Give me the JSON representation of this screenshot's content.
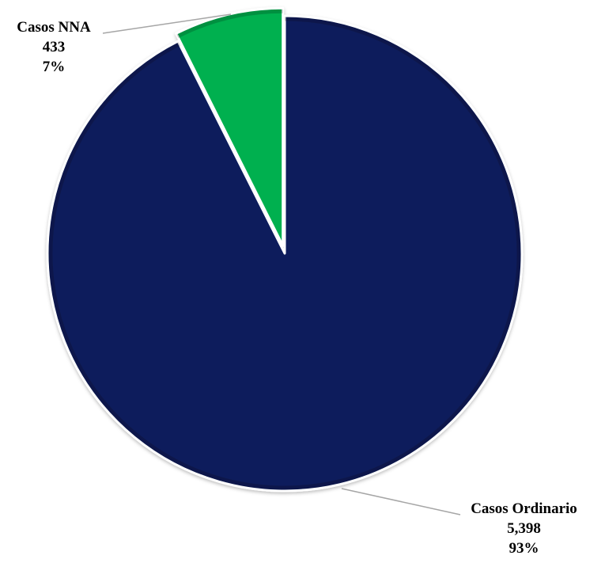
{
  "chart_data": {
    "type": "pie",
    "slices": [
      {
        "label": "Casos Ordinario",
        "value": 5398,
        "value_text": "5,398",
        "percent_text": "93%",
        "color": "#0a1f5c"
      },
      {
        "label": "Casos NNA",
        "value": 433,
        "value_text": "433",
        "percent_text": "7%",
        "color": "#00b04f"
      }
    ],
    "title": "",
    "legend": "none",
    "start_angle_deg": 0,
    "direction": "counter-clockwise",
    "exploded_slice": "Casos NNA"
  }
}
